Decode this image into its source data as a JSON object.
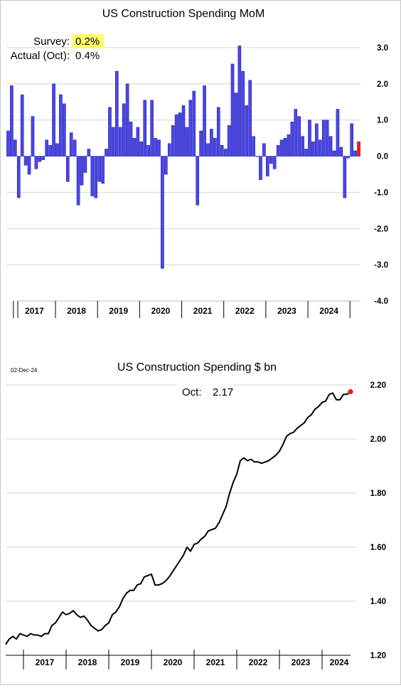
{
  "charts": [
    {
      "id": "mom",
      "chart_data": {
        "type": "bar",
        "title": "US Construction Spending MoM",
        "xlabel": "",
        "ylabel": "",
        "ylim": [
          -4.0,
          3.0
        ],
        "yticks": [
          "3.0",
          "2.0",
          "1.0",
          "0.0",
          "-1.0",
          "-2.0",
          "-3.0",
          "-4.0"
        ],
        "ytick_values": [
          3,
          2,
          1,
          0,
          -1,
          -2,
          -3,
          -4
        ],
        "grid": true,
        "years": [
          "2017",
          "2018",
          "2019",
          "2020",
          "2021",
          "2022",
          "2023",
          "2024"
        ],
        "start": "2016-11",
        "values": [
          0.7,
          1.95,
          0.45,
          -1.15,
          1.7,
          -0.25,
          -0.5,
          1.1,
          -0.35,
          -0.15,
          -0.1,
          0.45,
          0.3,
          2.0,
          0.35,
          1.7,
          1.45,
          -0.7,
          0.65,
          0.45,
          -1.35,
          -0.8,
          -0.45,
          0.2,
          -1.1,
          -1.15,
          -0.7,
          -0.75,
          0.2,
          1.35,
          0.8,
          2.35,
          0.8,
          1.45,
          2.0,
          0.95,
          0.5,
          0.8,
          0.4,
          1.55,
          0.3,
          1.55,
          0.5,
          0.45,
          -3.1,
          -0.5,
          0.35,
          0.85,
          1.15,
          1.2,
          1.4,
          0.8,
          1.55,
          1.8,
          -1.35,
          0.7,
          1.95,
          0.35,
          0.75,
          0.5,
          1.35,
          0.3,
          0.2,
          0.85,
          2.55,
          1.75,
          3.05,
          2.35,
          1.4,
          2.1,
          0.55,
          0.0,
          -0.65,
          0.35,
          -0.55,
          -0.2,
          -0.35,
          0.3,
          0.45,
          0.5,
          0.6,
          0.95,
          1.3,
          1.1,
          0.55,
          0.2,
          1.0,
          0.4,
          0.9,
          0.45,
          1.0,
          1.0,
          0.55,
          0.15,
          1.3,
          0.25,
          -1.15,
          -0.05,
          0.9,
          0.15,
          0.4
        ],
        "highlight_last": true,
        "colors": {
          "bar": "#4a46e8",
          "highlight": "#ee1c1c",
          "grid": "#d4d4d4",
          "highlight_text_bg": "#ffff66"
        }
      },
      "annotations": {
        "survey_label": "Survey:",
        "survey_value": "0.2%",
        "actual_label": "Actual (Oct):",
        "actual_value": "0.4%"
      }
    },
    {
      "id": "level",
      "chart_data": {
        "type": "line",
        "title": "US Construction Spending $ bn",
        "xlabel": "",
        "ylabel": "",
        "ylim": [
          1.2,
          2.2
        ],
        "yticks": [
          "2.20",
          "2.00",
          "1.80",
          "1.60",
          "1.40",
          "1.20"
        ],
        "ytick_values": [
          2.2,
          2.0,
          1.8,
          1.6,
          1.4,
          1.2
        ],
        "grid": true,
        "years": [
          "2017",
          "2018",
          "2019",
          "2020",
          "2021",
          "2022",
          "2023",
          "2024"
        ],
        "start": "2016-08",
        "values": [
          1.24,
          1.26,
          1.27,
          1.26,
          1.28,
          1.275,
          1.27,
          1.28,
          1.275,
          1.275,
          1.27,
          1.28,
          1.28,
          1.31,
          1.32,
          1.34,
          1.36,
          1.35,
          1.355,
          1.365,
          1.35,
          1.34,
          1.345,
          1.33,
          1.31,
          1.3,
          1.29,
          1.295,
          1.31,
          1.32,
          1.35,
          1.36,
          1.38,
          1.41,
          1.43,
          1.44,
          1.44,
          1.46,
          1.465,
          1.49,
          1.495,
          1.5,
          1.46,
          1.46,
          1.465,
          1.475,
          1.49,
          1.51,
          1.53,
          1.55,
          1.57,
          1.6,
          1.585,
          1.61,
          1.615,
          1.63,
          1.64,
          1.66,
          1.665,
          1.67,
          1.69,
          1.72,
          1.75,
          1.8,
          1.84,
          1.87,
          1.92,
          1.93,
          1.92,
          1.925,
          1.915,
          1.915,
          1.91,
          1.915,
          1.92,
          1.93,
          1.94,
          1.955,
          1.98,
          2.01,
          2.02,
          2.025,
          2.04,
          2.05,
          2.06,
          2.08,
          2.09,
          2.11,
          2.12,
          2.135,
          2.14,
          2.165,
          2.17,
          2.145,
          2.145,
          2.165,
          2.165,
          2.175
        ],
        "highlight_last": true,
        "colors": {
          "line": "#000000",
          "highlight": "#ee1c1c",
          "grid": "#d4d4d4"
        }
      },
      "annotations": {
        "date": "02-Dec-24",
        "oct_label": "Oct:",
        "oct_value": "2.17"
      }
    }
  ]
}
